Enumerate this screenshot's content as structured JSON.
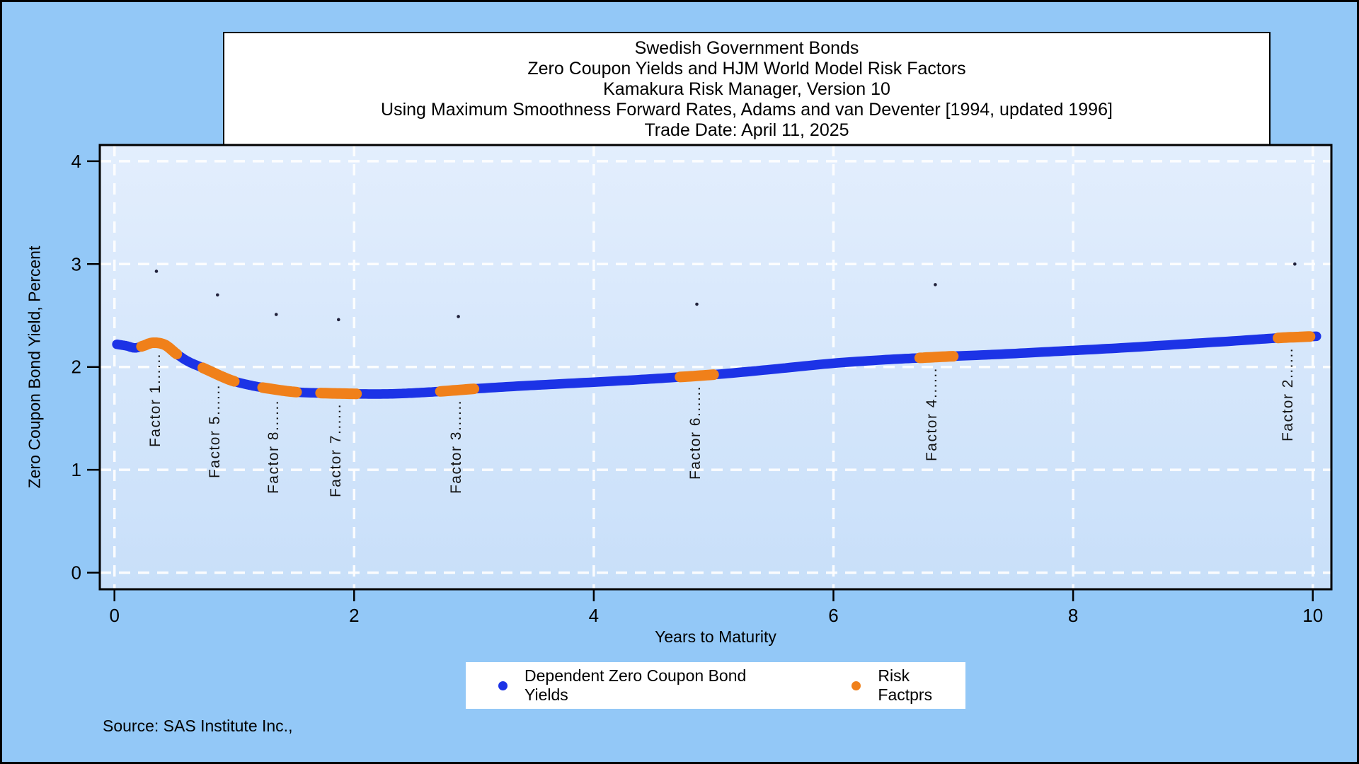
{
  "window": {
    "bg": "#93c8f7",
    "border_color": "#000000"
  },
  "title_box": {
    "lines": [
      "Swedish Government Bonds",
      "Zero Coupon Yields and HJM World Model Risk Factors",
      "Kamakura Risk Manager, Version 10",
      "Using Maximum Smoothness Forward Rates, Adams and van Deventer [1994, updated 1996]",
      "Trade Date: April 11, 2025"
    ]
  },
  "source_note": "Source: SAS Institute Inc.,",
  "chart_data": {
    "type": "line",
    "xlabel": "Years to Maturity",
    "ylabel": "Zero Coupon Bond Yield, Percent",
    "xlim": [
      0,
      10
    ],
    "ylim": [
      0,
      4
    ],
    "xticks": [
      0,
      2,
      4,
      6,
      8,
      10
    ],
    "yticks": [
      0,
      1,
      2,
      3,
      4
    ],
    "grid": "white-dashed",
    "plot_bg_top": "#e3eefd",
    "plot_bg_bottom": "#c8dff9",
    "series": [
      {
        "name": "Dependent Zero Coupon Bond Yields",
        "color": "#1c33e6",
        "style": "thick-dot-line",
        "points": [
          [
            0.02,
            2.22
          ],
          [
            0.1,
            2.205
          ],
          [
            0.17,
            2.185
          ],
          [
            0.24,
            2.205
          ],
          [
            0.32,
            2.235
          ],
          [
            0.42,
            2.215
          ],
          [
            0.52,
            2.125
          ],
          [
            0.62,
            2.05
          ],
          [
            0.75,
            1.985
          ],
          [
            0.88,
            1.915
          ],
          [
            1.0,
            1.86
          ],
          [
            1.15,
            1.818
          ],
          [
            1.3,
            1.788
          ],
          [
            1.5,
            1.757
          ],
          [
            1.7,
            1.747
          ],
          [
            1.9,
            1.741
          ],
          [
            2.1,
            1.737
          ],
          [
            2.3,
            1.738
          ],
          [
            2.5,
            1.747
          ],
          [
            2.72,
            1.762
          ],
          [
            3.0,
            1.787
          ],
          [
            3.3,
            1.809
          ],
          [
            3.6,
            1.828
          ],
          [
            4.0,
            1.852
          ],
          [
            4.4,
            1.878
          ],
          [
            4.72,
            1.902
          ],
          [
            5.0,
            1.925
          ],
          [
            5.3,
            1.956
          ],
          [
            5.6,
            1.99
          ],
          [
            6.0,
            2.036
          ],
          [
            6.4,
            2.068
          ],
          [
            6.72,
            2.088
          ],
          [
            7.0,
            2.104
          ],
          [
            7.4,
            2.124
          ],
          [
            7.8,
            2.148
          ],
          [
            8.2,
            2.172
          ],
          [
            8.6,
            2.199
          ],
          [
            9.0,
            2.228
          ],
          [
            9.4,
            2.257
          ],
          [
            9.71,
            2.282
          ],
          [
            9.9,
            2.292
          ],
          [
            10.03,
            2.298
          ]
        ]
      },
      {
        "name": "Risk Factprs",
        "color": "#f0801a",
        "style": "overlay-segments-on-curve",
        "segments": [
          [
            0.22,
            0.52
          ],
          [
            0.73,
            1.01
          ],
          [
            1.23,
            1.52
          ],
          [
            1.72,
            2.02
          ],
          [
            2.72,
            3.02
          ],
          [
            4.72,
            5.01
          ],
          [
            6.72,
            7.01
          ],
          [
            9.71,
            9.99
          ]
        ]
      }
    ],
    "factors": [
      {
        "label": "Factor 1",
        "x": 0.36,
        "point": [
          0.35,
          2.93
        ]
      },
      {
        "label": "Factor 5",
        "x": 0.86,
        "point": [
          0.86,
          2.7
        ]
      },
      {
        "label": "Factor 8",
        "x": 1.35,
        "point": [
          1.35,
          2.51
        ]
      },
      {
        "label": "Factor 7",
        "x": 1.87,
        "point": [
          1.87,
          2.46
        ]
      },
      {
        "label": "Factor 3",
        "x": 2.87,
        "point": [
          2.87,
          2.49
        ]
      },
      {
        "label": "Factor 6",
        "x": 4.87,
        "point": [
          4.86,
          2.61
        ]
      },
      {
        "label": "Factor 4",
        "x": 6.84,
        "point": [
          6.85,
          2.8
        ]
      },
      {
        "label": "Factor 2",
        "x": 9.81,
        "point": [
          9.85,
          3.0
        ]
      }
    ],
    "factor_leader": "......",
    "factor_point_color": "#20203a",
    "legend": {
      "items": [
        {
          "label": "Dependent Zero Coupon Bond Yields",
          "color": "#1c33e6"
        },
        {
          "label": "Risk Factprs",
          "color": "#f0801a"
        }
      ]
    }
  }
}
